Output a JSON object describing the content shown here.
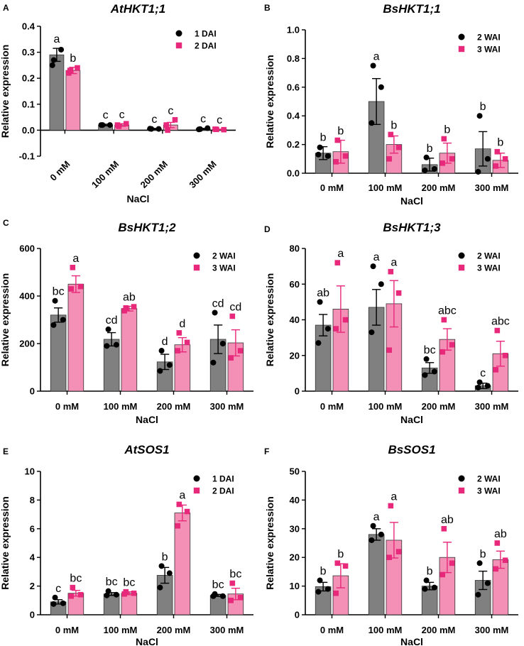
{
  "colors": {
    "series1": "#808080",
    "series2": "#f48fb5",
    "dot1": "#000000",
    "dot2": "#e8287a",
    "axis": "#000000"
  },
  "chart_data": [
    {
      "panel": "A",
      "type": "bar",
      "title": "AtHKT1;1",
      "xlabel": "NaCl",
      "ylabel": "Relative expression",
      "ylim": [
        -0.1,
        0.4
      ],
      "yticks": [
        "-0.1",
        "0.0",
        "0.1",
        "0.2",
        "0.3",
        "0.4"
      ],
      "ytickvals": [
        -0.1,
        0.0,
        0.1,
        0.2,
        0.3,
        0.4
      ],
      "xtick_rotated": true,
      "legend_pos": "top-right",
      "categories": [
        "0 mM",
        "100 mM",
        "200 mM",
        "300 mM"
      ],
      "series": [
        {
          "name": "1 DAI",
          "values": [
            0.29,
            0.02,
            0.005,
            0.005
          ],
          "errors": [
            0.025,
            0.003,
            0.002,
            0.002
          ],
          "points": [
            [
              0.27,
              0.31,
              0.25
            ],
            [
              0.02,
              0.02,
              0.02
            ],
            [
              0.005,
              0.005,
              0.006
            ],
            [
              0.004,
              0.008,
              0.003
            ]
          ],
          "letters": [
            "a",
            "c",
            "c",
            "c"
          ]
        },
        {
          "name": "2 DAI",
          "values": [
            0.23,
            0.02,
            0.02,
            0.003
          ],
          "errors": [
            0.012,
            0.005,
            0.01,
            0.001
          ],
          "points": [
            [
              0.23,
              0.24,
              0.22
            ],
            [
              0.015,
              0.025,
              0.02
            ],
            [
              0.0,
              0.04,
              0.02
            ],
            [
              0.003,
              0.002,
              0.004
            ]
          ],
          "letters": [
            "b",
            "c",
            "c",
            "c"
          ]
        }
      ]
    },
    {
      "panel": "B",
      "type": "bar",
      "title": "BsHKT1;1",
      "xlabel": "NaCl",
      "ylabel": "Relative expression",
      "ylim": [
        0,
        1.0
      ],
      "yticks": [
        "0.0",
        "0.2",
        "0.4",
        "0.6",
        "0.8",
        "1.0"
      ],
      "ytickvals": [
        0,
        0.2,
        0.4,
        0.6,
        0.8,
        1.0
      ],
      "xtick_rotated": false,
      "legend_pos": "top-right",
      "categories": [
        "0 mM",
        "100 mM",
        "200 mM",
        "300 mM"
      ],
      "series": [
        {
          "name": "2 WAI",
          "values": [
            0.14,
            0.5,
            0.06,
            0.17
          ],
          "errors": [
            0.045,
            0.16,
            0.045,
            0.12
          ],
          "points": [
            [
              0.18,
              0.12,
              0.13
            ],
            [
              0.75,
              0.6,
              0.35
            ],
            [
              0.11,
              0.03,
              0.02
            ],
            [
              0.4,
              0.1,
              0.01
            ]
          ],
          "letters": [
            "b",
            "a",
            "b",
            "b"
          ]
        },
        {
          "name": "3 WAI",
          "values": [
            0.15,
            0.2,
            0.14,
            0.09
          ],
          "errors": [
            0.08,
            0.06,
            0.07,
            0.05
          ],
          "points": [
            [
              0.23,
              0.12,
              0.08
            ],
            [
              0.27,
              0.18,
              0.1
            ],
            [
              0.24,
              0.1,
              0.07
            ],
            [
              0.15,
              0.1,
              0.05
            ]
          ],
          "letters": [
            "b",
            "b",
            "b",
            "b"
          ]
        }
      ]
    },
    {
      "panel": "C",
      "type": "bar",
      "title": "BsHKT1;2",
      "xlabel": "NaCl",
      "ylabel": "Relative expression",
      "ylim": [
        0,
        600
      ],
      "yticks": [
        "0",
        "200",
        "400",
        "600"
      ],
      "ytickvals": [
        0,
        200,
        400,
        600
      ],
      "xtick_rotated": false,
      "legend_pos": "top-right",
      "categories": [
        "0 mM",
        "100 mM",
        "200 mM",
        "300 mM"
      ],
      "series": [
        {
          "name": "2 WAI",
          "values": [
            320,
            218,
            123,
            218
          ],
          "errors": [
            30,
            28,
            32,
            60
          ],
          "points": [
            [
              380,
              300,
              278
            ],
            [
              260,
              195,
              190
            ],
            [
              170,
              110,
              85
            ],
            [
              330,
              200,
              120
            ]
          ],
          "letters": [
            "bc",
            "cd",
            "d",
            "cd"
          ]
        },
        {
          "name": "3 WAI",
          "values": [
            450,
            347,
            195,
            203
          ],
          "errors": [
            35,
            10,
            30,
            55
          ],
          "points": [
            [
              520,
              440,
              430
            ],
            [
              350,
              355,
              338
            ],
            [
              245,
              205,
              170
            ],
            [
              315,
              170,
              140
            ]
          ],
          "letters": [
            "a",
            "ab",
            "d",
            "cd"
          ]
        }
      ]
    },
    {
      "panel": "D",
      "type": "bar",
      "title": "BsHKT1;3",
      "xlabel": "NaCl",
      "ylabel": "Relative expression",
      "ylim": [
        0,
        80
      ],
      "yticks": [
        "0",
        "20",
        "40",
        "60",
        "80"
      ],
      "ytickvals": [
        0,
        20,
        40,
        60,
        80
      ],
      "xtick_rotated": false,
      "legend_pos": "top-right",
      "categories": [
        "0 mM",
        "100 mM",
        "200 mM",
        "300 mM"
      ],
      "series": [
        {
          "name": "2 WAI",
          "values": [
            37,
            47,
            13,
            3
          ],
          "errors": [
            6,
            10,
            3,
            1.5
          ],
          "points": [
            [
              50,
              35,
              27
            ],
            [
              70,
              60,
              33
            ],
            [
              18,
              11,
              9
            ],
            [
              5,
              3,
              2
            ]
          ],
          "letters": [
            "ab",
            "a",
            "bc",
            "c"
          ]
        },
        {
          "name": "3 WAI",
          "values": [
            46,
            49,
            29,
            21
          ],
          "errors": [
            13,
            13,
            6,
            7
          ],
          "points": [
            [
              72,
              40,
              35
            ],
            [
              67,
              55,
              23
            ],
            [
              40,
              26,
              22
            ],
            [
              34,
              20,
              12
            ]
          ],
          "letters": [
            "a",
            "a",
            "abc",
            "abc"
          ]
        }
      ]
    },
    {
      "panel": "E",
      "type": "bar",
      "title": "AtSOS1",
      "xlabel": "NaCl",
      "ylabel": "Relative expression",
      "ylim": [
        0,
        10
      ],
      "yticks": [
        "0",
        "2",
        "4",
        "6",
        "8",
        "10"
      ],
      "ytickvals": [
        0,
        2,
        4,
        6,
        8,
        10
      ],
      "xtick_rotated": false,
      "legend_pos": "top-right",
      "categories": [
        "0 mM",
        "100 mM",
        "200 mM",
        "300 mM"
      ],
      "series": [
        {
          "name": "1 DAI",
          "values": [
            0.9,
            1.45,
            2.75,
            1.35
          ],
          "errors": [
            0.15,
            0.1,
            0.55,
            0.07
          ],
          "points": [
            [
              1.2,
              0.8,
              0.75
            ],
            [
              1.65,
              1.4,
              1.35
            ],
            [
              3.4,
              2.9,
              1.9
            ],
            [
              1.45,
              1.3,
              1.3
            ]
          ],
          "letters": [
            "c",
            "bc",
            "b",
            "bc"
          ]
        },
        {
          "name": "2 DAI",
          "values": [
            1.5,
            1.5,
            7.1,
            1.45
          ],
          "errors": [
            0.2,
            0.1,
            0.55,
            0.4
          ],
          "points": [
            [
              1.9,
              1.4,
              1.3
            ],
            [
              1.6,
              1.5,
              1.45
            ],
            [
              7.7,
              7.2,
              6.2
            ],
            [
              2.2,
              1.2,
              1.0
            ]
          ],
          "letters": [
            "bc",
            "bc",
            "a",
            "bc"
          ]
        }
      ]
    },
    {
      "panel": "F",
      "type": "bar",
      "title": "BsSOS1",
      "xlabel": "NaCl",
      "ylabel": "Relative expression",
      "ylim": [
        0,
        50
      ],
      "yticks": [
        "0",
        "10",
        "20",
        "30",
        "40",
        "50"
      ],
      "ytickvals": [
        0,
        10,
        20,
        30,
        40,
        50
      ],
      "xtick_rotated": false,
      "legend_pos": "top-right",
      "categories": [
        "0 mM",
        "100 mM",
        "200 mM",
        "300 mM"
      ],
      "series": [
        {
          "name": "2 WAI",
          "values": [
            9.8,
            28,
            10,
            12
          ],
          "errors": [
            1.5,
            2,
            1.3,
            3.2
          ],
          "points": [
            [
              12,
              9,
              8
            ],
            [
              31,
              28,
              26
            ],
            [
              12,
              9.5,
              9
            ],
            [
              18,
              11,
              7
            ]
          ],
          "letters": [
            "b",
            "a",
            "b",
            "b"
          ]
        },
        {
          "name": "3 WAI",
          "values": [
            13.6,
            26,
            20,
            19.2
          ],
          "errors": [
            4.2,
            6.2,
            5.3,
            3
          ],
          "points": [
            [
              18,
              17,
              7.5
            ],
            [
              38,
              22,
              20
            ],
            [
              30,
              18,
              14
            ],
            [
              25,
              19,
              16
            ]
          ],
          "letters": [
            "b",
            "a",
            "ab",
            "ab"
          ]
        }
      ]
    }
  ]
}
